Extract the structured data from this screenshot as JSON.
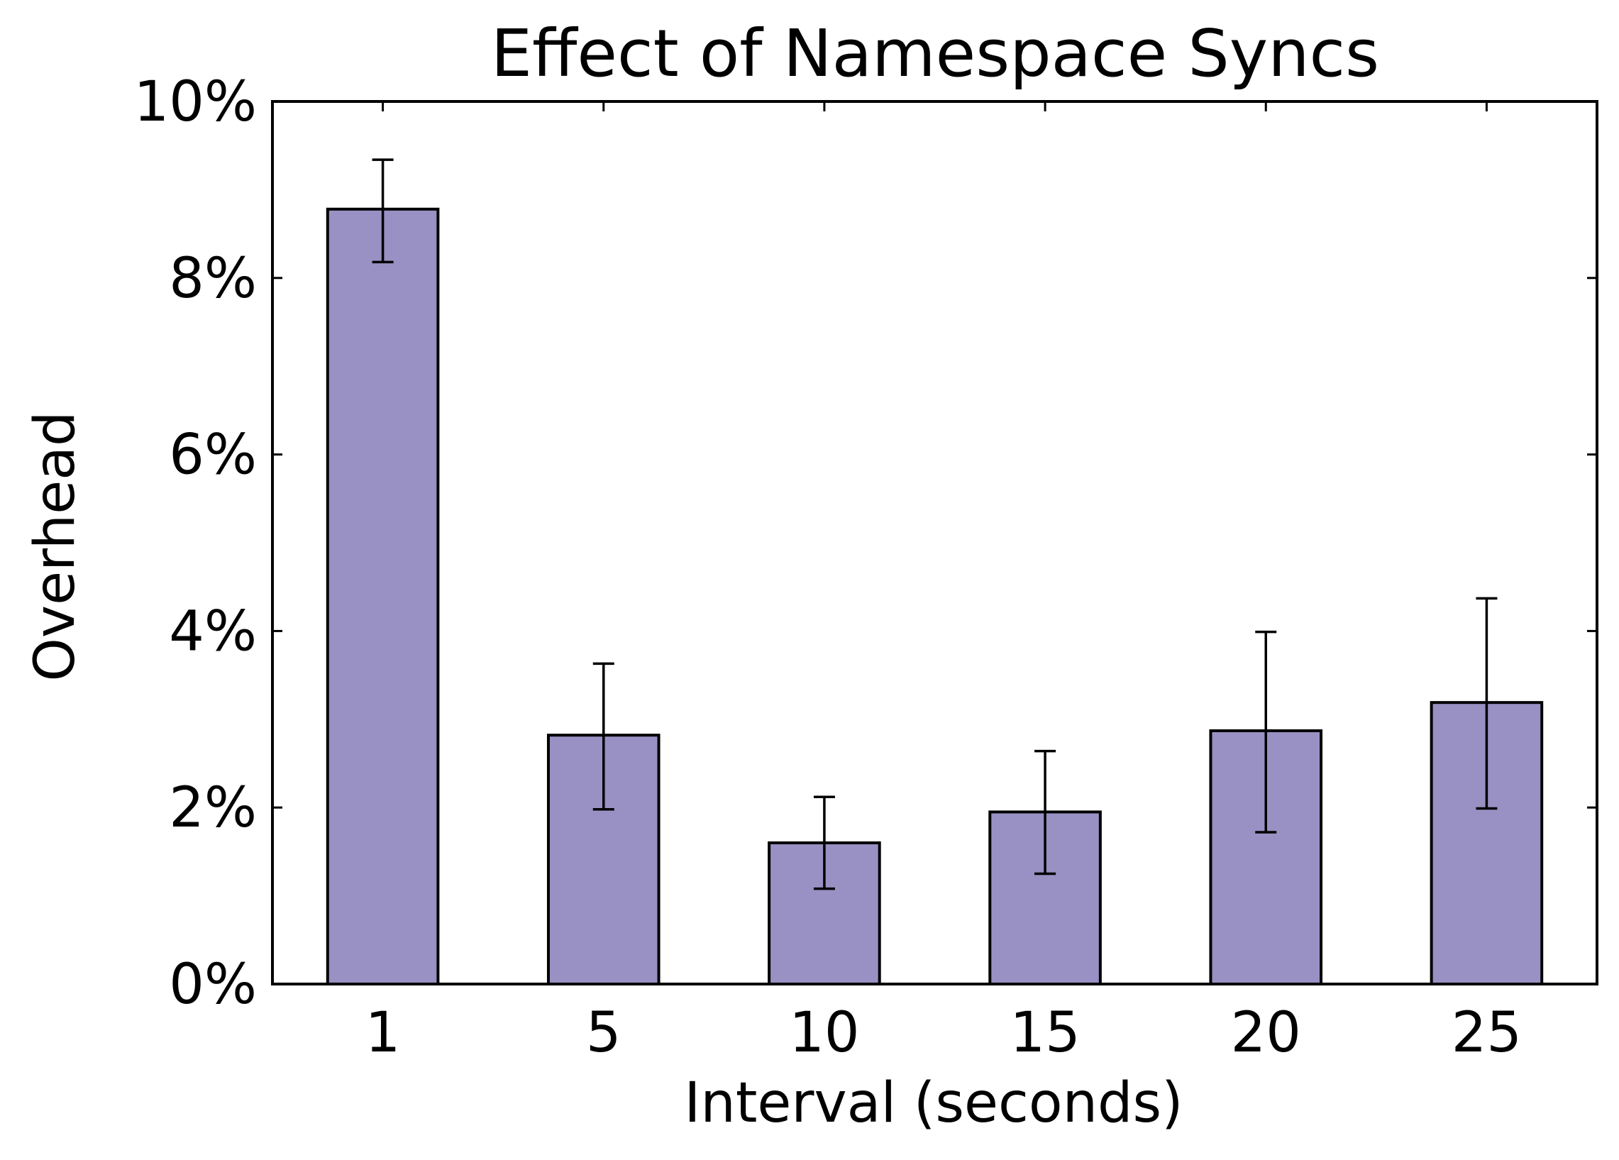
{
  "chart_data": {
    "type": "bar",
    "title": "Effect of Namespace Syncs",
    "xlabel": "Interval (seconds)",
    "ylabel": "Overhead",
    "categories": [
      "1",
      "5",
      "10",
      "15",
      "20",
      "25"
    ],
    "values": [
      8.78,
      2.82,
      1.6,
      1.95,
      2.87,
      3.19
    ],
    "error_low": [
      8.18,
      1.98,
      1.08,
      1.25,
      1.72,
      1.99
    ],
    "error_high": [
      9.34,
      3.63,
      2.12,
      2.64,
      3.99,
      4.37
    ],
    "ylim": [
      0,
      10
    ],
    "yticks": [
      0,
      2,
      4,
      6,
      8,
      10
    ],
    "ytick_labels": [
      "0%",
      "2%",
      "4%",
      "6%",
      "8%",
      "10%"
    ],
    "grid": false,
    "legend": "none",
    "bar_color": "#9990c3",
    "edge_color": "#000000"
  }
}
